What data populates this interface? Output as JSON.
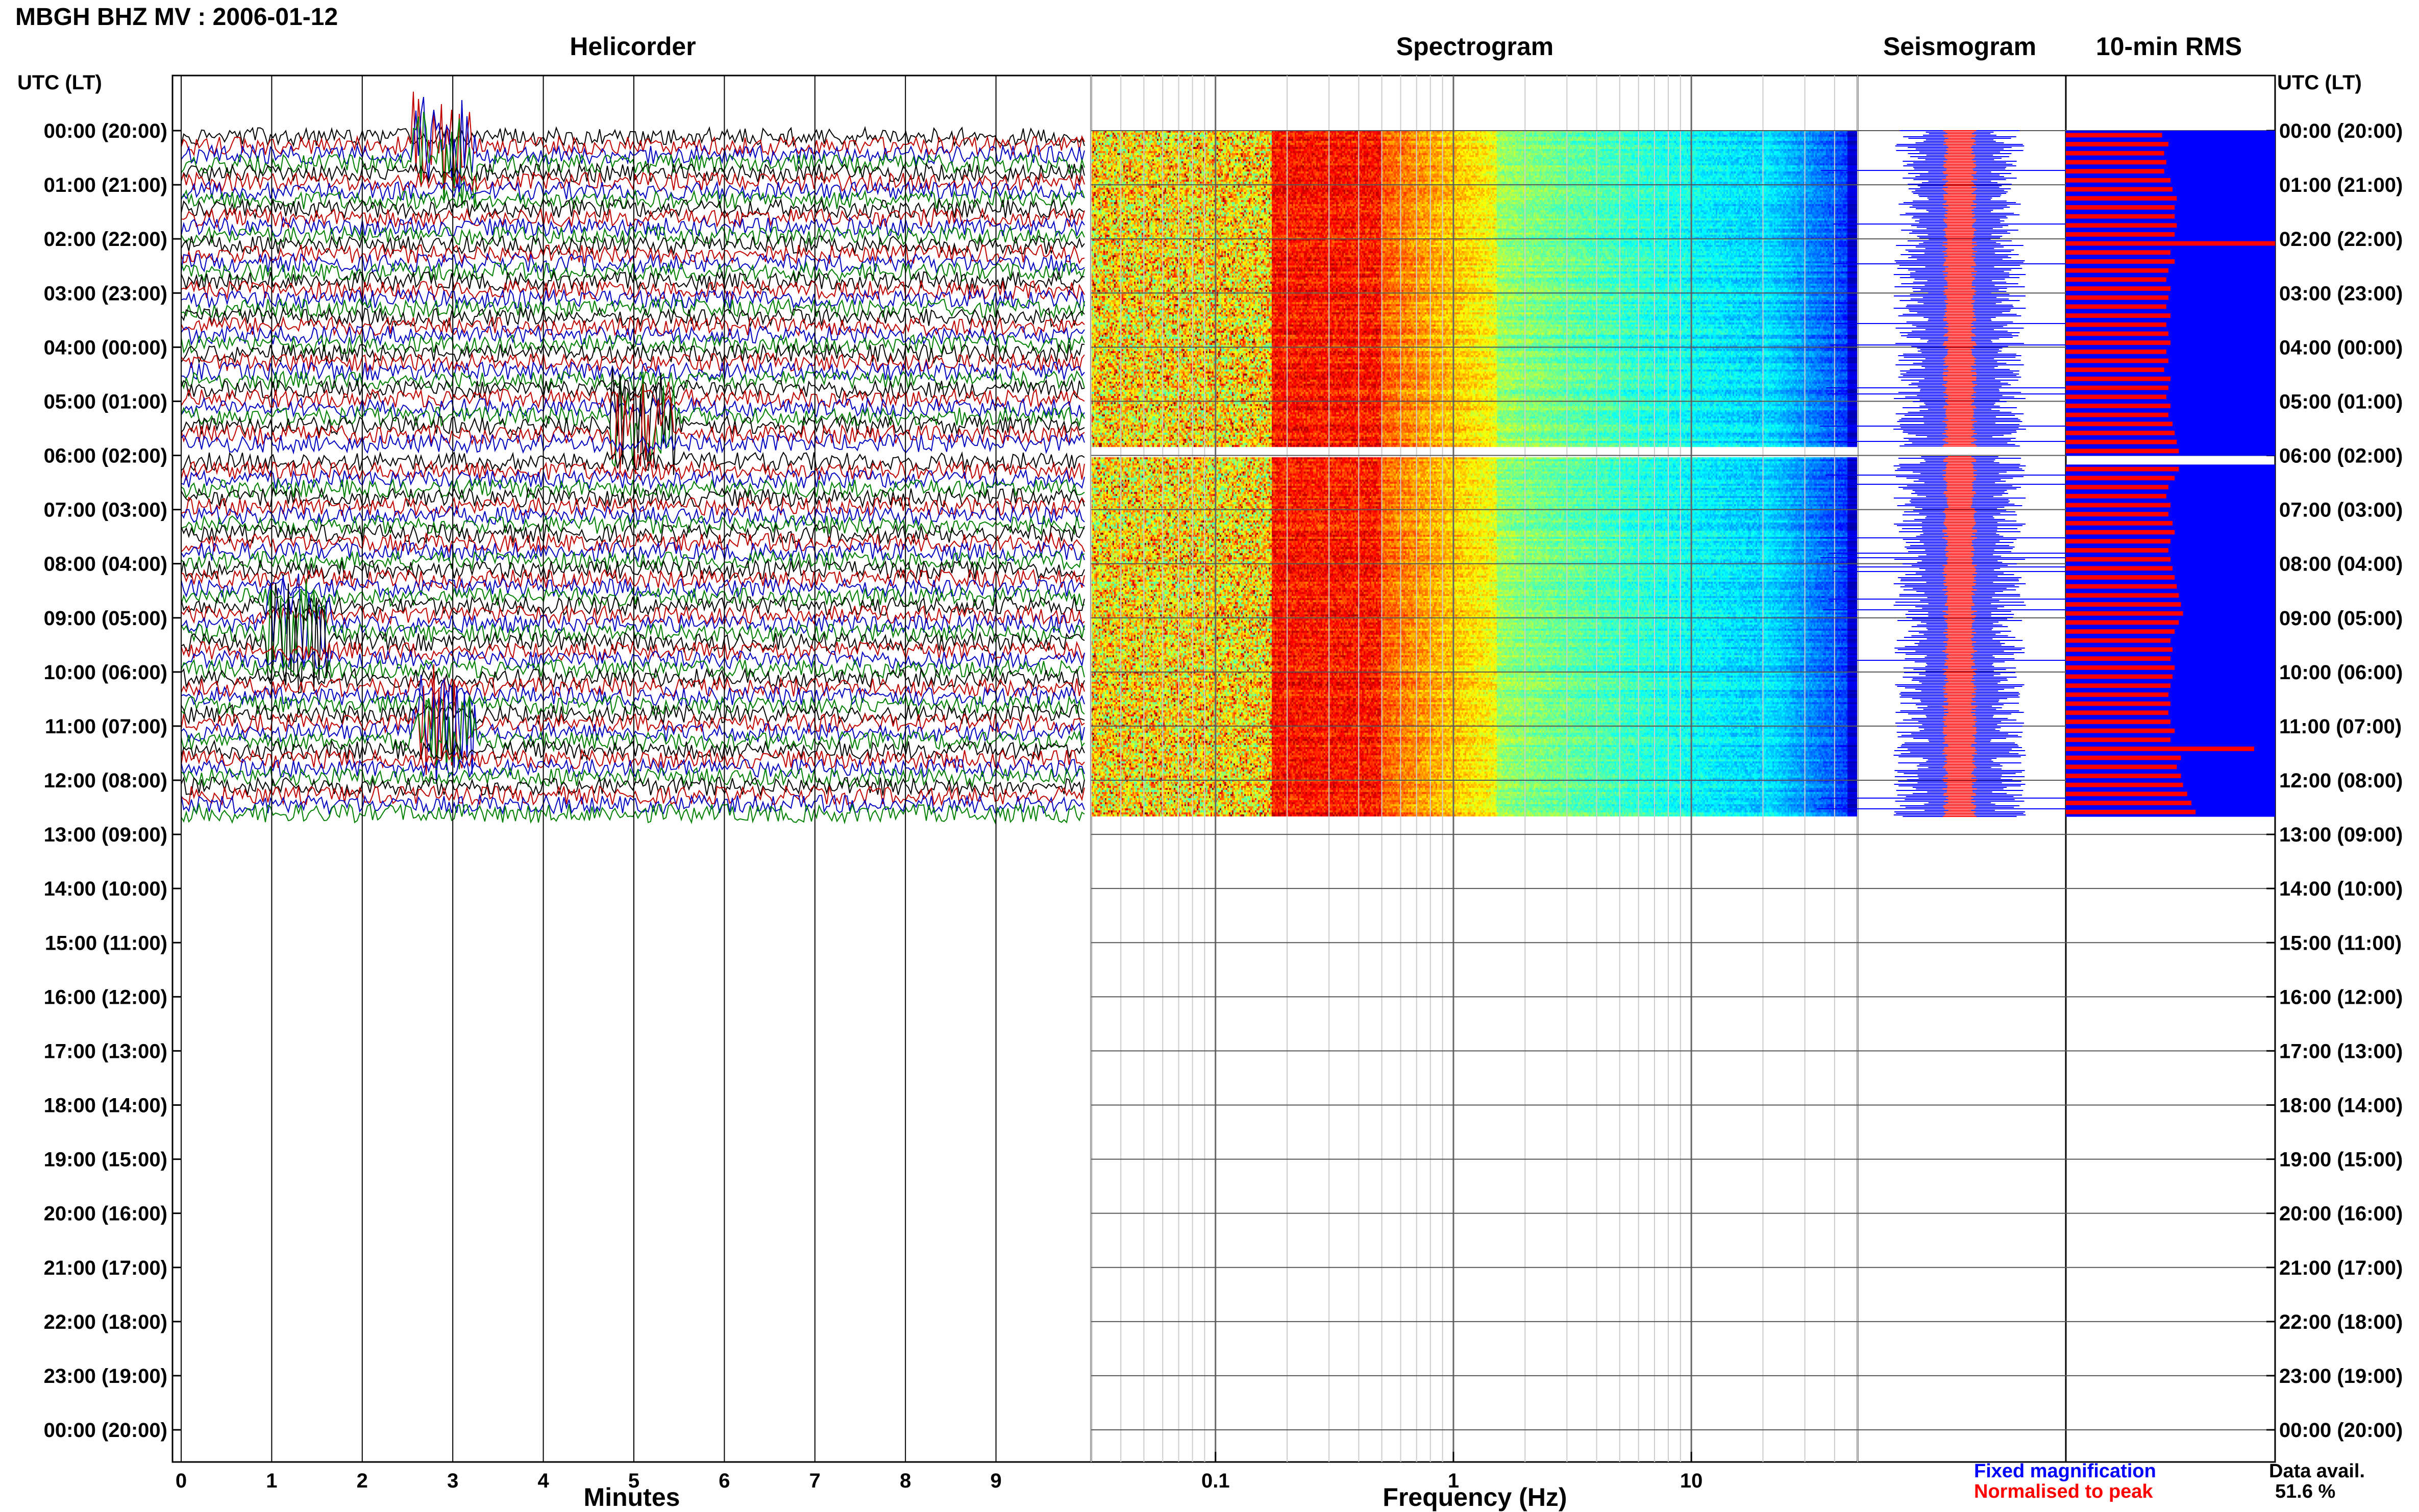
{
  "title": "MBGH BHZ MV : 2006-01-12",
  "panels": {
    "helicorder": "Helicorder",
    "spectrogram": "Spectrogram",
    "seismogram": "Seismogram",
    "rms": "10-min RMS"
  },
  "time_axis_header": "UTC (LT)",
  "xlabels": {
    "helicorder": "Minutes",
    "spectrogram": "Frequency (Hz)"
  },
  "legend": {
    "fixed": "Fixed magnification",
    "normalised": "Normalised to peak"
  },
  "data_avail": {
    "label": "Data avail.",
    "value": "51.6 %"
  },
  "colors": {
    "helicorder_traces": [
      "#000000",
      "#c00000",
      "#0000c0",
      "#008000"
    ],
    "fixed_magnification": "#0000ff",
    "normalised_to_peak": "#ff0000",
    "spectrogram_colormap": "jet"
  },
  "chart_data": [
    {
      "type": "line",
      "title": "Helicorder",
      "xlabel": "Minutes",
      "xlim": [
        0,
        10
      ],
      "x_ticks": [
        "0",
        "1",
        "2",
        "3",
        "4",
        "5",
        "6",
        "7",
        "8",
        "9"
      ],
      "y_tick_labels": [
        "00:00 (20:00)",
        "01:00 (21:00)",
        "02:00 (22:00)",
        "03:00 (23:00)",
        "04:00 (00:00)",
        "05:00 (01:00)",
        "06:00 (02:00)",
        "07:00 (03:00)",
        "08:00 (04:00)",
        "09:00 (05:00)",
        "10:00 (06:00)",
        "11:00 (07:00)",
        "12:00 (08:00)",
        "13:00 (09:00)",
        "14:00 (10:00)",
        "15:00 (11:00)",
        "16:00 (12:00)",
        "17:00 (13:00)",
        "18:00 (14:00)",
        "19:00 (15:00)",
        "20:00 (16:00)",
        "21:00 (17:00)",
        "22:00 (18:00)",
        "23:00 (19:00)",
        "00:00 (20:00)"
      ],
      "trace_minutes_per_line": 10,
      "data_end_hour": 12.67,
      "gap_hours": [
        5.83,
        6.0
      ],
      "events": [
        {
          "hour": 0.33,
          "minute": 2.9
        },
        {
          "hour": 11.0,
          "minute": 2.9
        },
        {
          "hour": 9.17,
          "minute": 1.3
        },
        {
          "hour": 5.33,
          "minute": 5.1
        }
      ]
    },
    {
      "type": "heatmap",
      "title": "Spectrogram",
      "xlabel": "Frequency (Hz)",
      "x_scale": "log",
      "xlim": [
        0.03,
        50
      ],
      "x_ticks": [
        "0.1",
        "1",
        "10"
      ],
      "data_end_hour": 12.67,
      "gap_hours": [
        5.83,
        6.0
      ],
      "microseism_band_hz": [
        0.17,
        0.5
      ],
      "colormap": "jet"
    },
    {
      "type": "line",
      "title": "Seismogram",
      "series": [
        {
          "name": "Fixed magnification",
          "color": "#0000ff"
        },
        {
          "name": "Normalised to peak",
          "color": "#ff0000"
        }
      ]
    },
    {
      "type": "bar",
      "title": "10-min RMS",
      "orientation": "horizontal",
      "series": [
        {
          "name": "Fixed magnification",
          "color": "#0000ff",
          "values": [
            1,
            1,
            1,
            1,
            1,
            1,
            1,
            1,
            1,
            1,
            1,
            1,
            1,
            1,
            1,
            1,
            1,
            1,
            1,
            1,
            1,
            1,
            1,
            1,
            1,
            1,
            1,
            1,
            1,
            1,
            1,
            1,
            1,
            1,
            1,
            1,
            0,
            1,
            1,
            1,
            1,
            1,
            1,
            1,
            1,
            1,
            1,
            1,
            1,
            1,
            1,
            1,
            1,
            1,
            1,
            1,
            1,
            1,
            1,
            1,
            1,
            1,
            1,
            1,
            1,
            1,
            1,
            1,
            1,
            1,
            1,
            1,
            1,
            1,
            1,
            1
          ]
        },
        {
          "name": "Normalised to peak",
          "color": "#ff0000",
          "values": [
            0.46,
            0.49,
            0.47,
            0.48,
            0.47,
            0.5,
            0.51,
            0.53,
            0.52,
            0.52,
            0.53,
            0.52,
            1.0,
            0.5,
            0.52,
            0.49,
            0.48,
            0.5,
            0.49,
            0.48,
            0.5,
            0.48,
            0.49,
            0.5,
            0.48,
            0.49,
            0.47,
            0.5,
            0.49,
            0.48,
            0.5,
            0.49,
            0.51,
            0.52,
            0.53,
            0.54,
            0,
            0.54,
            0.52,
            0.49,
            0.48,
            0.5,
            0.49,
            0.51,
            0.52,
            0.5,
            0.49,
            0.5,
            0.51,
            0.52,
            0.53,
            0.54,
            0.55,
            0.56,
            0.54,
            0.52,
            0.5,
            0.51,
            0.5,
            0.52,
            0.51,
            0.5,
            0.49,
            0.5,
            0.49,
            0.5,
            0.52,
            0.5,
            0.9,
            0.55,
            0.53,
            0.55,
            0.56,
            0.58,
            0.6,
            0.62
          ]
        }
      ]
    }
  ]
}
